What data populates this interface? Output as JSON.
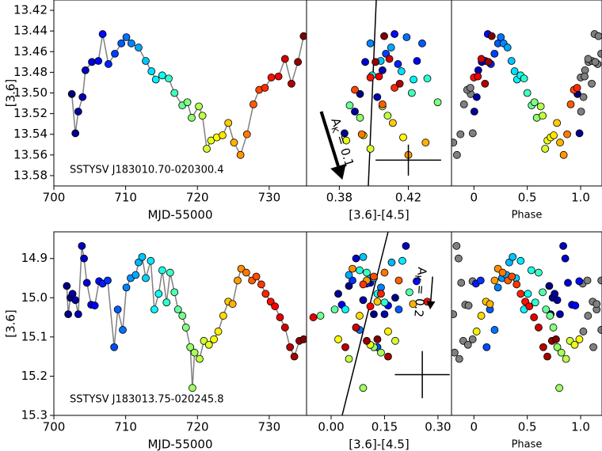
{
  "chart_data": [
    {
      "type": "line",
      "xlabel": "MJD-55000",
      "ylabel": "[3.6]",
      "annotation": "SSTYSV J183010.70-020300.4",
      "line_color": "#808080",
      "colormap": [
        "#00007f",
        "#0000ff",
        "#0080ff",
        "#00ffff",
        "#80ff80",
        "#ffff00",
        "#ff8000",
        "#ff0000",
        "#7f0000"
      ],
      "xlim": [
        700,
        735.2
      ],
      "xticks": [
        700,
        710,
        720,
        730
      ],
      "ylim": [
        13.59,
        13.41
      ],
      "yticks": [
        13.42,
        13.44,
        13.46,
        13.48,
        {
          "value": 13.5,
          "label": "13.50"
        },
        13.52,
        13.54,
        13.56,
        13.58
      ],
      "x": [
        702.5,
        703.0,
        703.4,
        704.0,
        704.4,
        705.3,
        706.2,
        706.8,
        707.6,
        708.5,
        709.4,
        710.1,
        710.8,
        711.8,
        712.8,
        713.6,
        714.2,
        715.1,
        716.0,
        716.8,
        717.9,
        718.6,
        719.2,
        720.2,
        720.7,
        721.3,
        721.9,
        722.7,
        723.5,
        724.3,
        725.1,
        726.0,
        726.9,
        727.8,
        728.6,
        729.4,
        730.3,
        731.3,
        732.2,
        733.1,
        734.0,
        734.8
      ],
      "values": [
        13.501,
        13.539,
        13.518,
        13.504,
        13.478,
        13.47,
        13.469,
        13.443,
        13.472,
        13.462,
        13.452,
        13.446,
        13.452,
        13.456,
        13.469,
        13.479,
        13.487,
        13.483,
        13.486,
        13.5,
        13.512,
        13.509,
        13.524,
        13.513,
        13.522,
        13.554,
        13.546,
        13.543,
        13.541,
        13.529,
        13.548,
        13.56,
        13.54,
        13.511,
        13.497,
        13.495,
        13.485,
        13.484,
        13.467,
        13.491,
        13.47,
        13.445
      ]
    },
    {
      "type": "scatter",
      "xlabel": "[3.6]-[4.5]",
      "xlim": [
        0.361,
        0.445
      ],
      "xticks": [
        0.38,
        0.42
      ],
      "x": [
        0.392,
        0.383,
        0.389,
        0.402,
        0.405,
        0.395,
        0.425,
        0.412,
        0.414,
        0.407,
        0.428,
        0.419,
        0.398,
        0.41,
        0.404,
        0.416,
        0.423,
        0.399,
        0.431,
        0.422,
        0.386,
        0.437,
        0.392,
        0.405,
        0.408,
        0.398,
        0.384,
        0.417,
        0.394,
        0.411,
        0.43,
        0.42,
        0.393,
        0.405,
        0.389,
        0.412,
        0.398,
        0.403,
        0.409,
        0.415,
        0.401,
        0.406
      ],
      "values": [
        13.501,
        13.539,
        13.518,
        13.504,
        13.478,
        13.47,
        13.469,
        13.443,
        13.472,
        13.462,
        13.452,
        13.446,
        13.452,
        13.456,
        13.469,
        13.479,
        13.487,
        13.483,
        13.486,
        13.5,
        13.512,
        13.509,
        13.524,
        13.513,
        13.522,
        13.554,
        13.546,
        13.543,
        13.541,
        13.529,
        13.548,
        13.56,
        13.54,
        13.511,
        13.497,
        13.495,
        13.485,
        13.484,
        13.467,
        13.491,
        13.47,
        13.445
      ],
      "fit_line": {
        "x": [
          0.4014,
          0.3968
        ],
        "y": [
          13.41,
          13.59
        ]
      },
      "arrow": {
        "x": [
          0.3695,
          0.3818
        ],
        "y": [
          13.518,
          13.584
        ],
        "label": "A",
        "label_sub": "K",
        "label_rest": " = 0.1"
      },
      "error_cross": {
        "x": 0.42,
        "y": 13.565,
        "xerr": 0.019,
        "yerr": 0.015
      }
    },
    {
      "type": "scatter",
      "xlabel": "Phase",
      "xlim": [
        -0.21,
        1.2
      ],
      "xticks": [
        0,
        0.5,
        {
          "value": 1,
          "label": "1.0"
        }
      ],
      "x": [
        0.97,
        0.989,
        0.004,
        0.026,
        0.041,
        0.074,
        0.107,
        0.13,
        0.159,
        0.193,
        0.226,
        0.252,
        0.278,
        0.315,
        0.352,
        0.381,
        0.404,
        0.437,
        0.47,
        0.5,
        0.541,
        0.567,
        0.589,
        0.626,
        0.644,
        0.667,
        0.689,
        0.719,
        0.748,
        0.778,
        0.807,
        0.841,
        0.874,
        0.907,
        0.937,
        0.967,
        0.0,
        0.037,
        0.07,
        0.104,
        0.137,
        0.167
      ],
      "values": [
        13.501,
        13.539,
        13.518,
        13.504,
        13.478,
        13.47,
        13.469,
        13.443,
        13.472,
        13.462,
        13.452,
        13.446,
        13.452,
        13.456,
        13.469,
        13.479,
        13.487,
        13.483,
        13.486,
        13.5,
        13.512,
        13.509,
        13.524,
        13.513,
        13.522,
        13.554,
        13.546,
        13.543,
        13.541,
        13.529,
        13.548,
        13.56,
        13.54,
        13.511,
        13.497,
        13.495,
        13.485,
        13.484,
        13.467,
        13.491,
        13.47,
        13.445
      ],
      "wrapped_color": "#808080",
      "wrapped_x": [
        -0.03,
        -0.011,
        -0.159,
        -0.126,
        -0.093,
        -0.063,
        -0.033,
        -0.193,
        1.004,
        1.026,
        1.041,
        1.074,
        1.107,
        1.13,
        1.159,
        1.193,
        1.0,
        1.037,
        1.07,
        1.104,
        1.137,
        1.167
      ],
      "wrapped_values": [
        13.501,
        13.539,
        13.56,
        13.54,
        13.511,
        13.497,
        13.495,
        13.548,
        13.518,
        13.504,
        13.478,
        13.47,
        13.469,
        13.443,
        13.472,
        13.462,
        13.485,
        13.484,
        13.467,
        13.491,
        13.47,
        13.445
      ]
    },
    {
      "type": "line",
      "xlabel": "MJD-55000",
      "ylabel": "[3.6]",
      "annotation": "SSTYSV J183013.75-020245.8",
      "line_color": "#808080",
      "colormap": [
        "#00007f",
        "#0000ff",
        "#0080ff",
        "#00ffff",
        "#80ff80",
        "#ffff00",
        "#ff8000",
        "#ff0000",
        "#7f0000"
      ],
      "xlim": [
        700,
        735.2
      ],
      "xticks": [
        700,
        710,
        720,
        730
      ],
      "ylim": [
        15.3,
        14.832
      ],
      "yticks": [
        14.9,
        {
          "value": 15,
          "label": "15.0"
        },
        15.1,
        15.2,
        15.3
      ],
      "x": [
        701.8,
        702.0,
        702.3,
        702.6,
        703.0,
        703.4,
        703.9,
        704.2,
        704.6,
        705.2,
        705.7,
        706.3,
        706.8,
        707.5,
        708.4,
        708.9,
        709.6,
        710.1,
        710.7,
        711.4,
        711.8,
        712.3,
        712.8,
        713.5,
        714.0,
        714.6,
        715.1,
        715.7,
        716.2,
        716.8,
        717.3,
        717.9,
        718.4,
        719.0,
        719.3,
        719.6,
        720.3,
        720.9,
        721.6,
        722.3,
        722.9,
        723.6,
        724.3,
        724.9,
        725.6,
        726.1,
        726.8,
        727.6,
        728.2,
        728.9,
        729.5,
        730.2,
        730.8,
        731.5,
        732.2,
        732.9,
        733.5,
        734.2,
        734.8
      ],
      "values": [
        14.97,
        15.042,
        15.0,
        14.99,
        15.006,
        15.042,
        14.868,
        14.9,
        14.962,
        15.018,
        15.02,
        14.958,
        14.964,
        14.956,
        15.126,
        15.03,
        15.082,
        14.974,
        14.95,
        14.942,
        14.91,
        14.896,
        14.95,
        14.906,
        15.03,
        14.99,
        14.93,
        15.012,
        14.936,
        14.986,
        15.03,
        15.046,
        15.076,
        15.126,
        15.23,
        15.14,
        15.156,
        15.11,
        15.12,
        15.106,
        15.086,
        15.046,
        15.01,
        15.016,
        14.956,
        14.926,
        14.936,
        14.956,
        14.946,
        14.966,
        14.99,
        15.01,
        15.022,
        15.05,
        15.076,
        15.126,
        15.15,
        15.11,
        15.106
      ]
    },
    {
      "type": "scatter",
      "xlabel": "[3.6]-[4.5]",
      "xlim": [
        -0.069,
        0.338
      ],
      "xticks": [
        {
          "value": 0,
          "label": "0.00"
        },
        0.15,
        {
          "value": 0.3,
          "label": "0.30"
        }
      ],
      "x": [
        0.05,
        0.12,
        0.18,
        0.02,
        0.09,
        0.15,
        0.21,
        0.07,
        0.11,
        0.03,
        0.16,
        0.24,
        0.1,
        0.06,
        0.13,
        0.19,
        0.08,
        0.14,
        0.11,
        0.05,
        0.17,
        0.09,
        0.12,
        0.2,
        0.04,
        0.13,
        0.08,
        0.15,
        0.1,
        0.22,
        0.01,
        -0.03,
        0.07,
        0.12,
        0.09,
        0.14,
        0.05,
        0.18,
        0.11,
        0.02,
        0.16,
        0.08,
        0.13,
        0.23,
        0.1,
        0.06,
        0.15,
        0.19,
        0.12,
        0.09,
        0.14,
        0.27,
        0.11,
        -0.05,
        0.07,
        0.04,
        0.16,
        0.1,
        0.13
      ],
      "values": [
        14.97,
        15.042,
        15.0,
        14.99,
        15.006,
        15.042,
        14.868,
        14.9,
        14.962,
        15.018,
        15.02,
        14.958,
        14.964,
        14.956,
        15.126,
        15.03,
        15.082,
        14.974,
        14.95,
        14.942,
        14.91,
        14.896,
        14.95,
        14.906,
        15.03,
        14.99,
        14.93,
        15.012,
        14.936,
        14.986,
        15.03,
        15.046,
        15.076,
        15.126,
        15.23,
        15.14,
        15.156,
        15.11,
        15.12,
        15.106,
        15.086,
        15.046,
        15.01,
        15.016,
        14.956,
        14.926,
        14.936,
        14.956,
        14.946,
        14.966,
        14.99,
        15.01,
        15.022,
        15.05,
        15.076,
        15.126,
        15.15,
        15.11,
        15.106
      ],
      "fit_line": {
        "x": [
          0.16,
          0.031
        ],
        "y": [
          14.832,
          15.3
        ]
      },
      "arrow": {
        "x": [
          0.285,
          0.278
        ],
        "y": [
          14.946,
          15.03
        ],
        "label": "A",
        "label_sub": "K",
        "label_rest": " = 0.2"
      },
      "error_cross": {
        "x": 0.256,
        "y": 15.196,
        "xerr": 0.077,
        "yerr": 0.06
      }
    },
    {
      "type": "scatter",
      "xlabel": "Phase",
      "xlim": [
        -0.21,
        1.2
      ],
      "xticks": [
        0,
        0.5,
        {
          "value": 1,
          "label": "1.0"
        }
      ],
      "x": [
        0.706,
        0.719,
        0.737,
        0.756,
        0.781,
        0.806,
        0.837,
        0.856,
        0.881,
        0.919,
        0.95,
        0.987,
        0.019,
        0.063,
        0.119,
        0.15,
        0.194,
        0.225,
        0.263,
        0.306,
        0.331,
        0.363,
        0.394,
        0.438,
        0.469,
        0.506,
        0.538,
        0.575,
        0.606,
        0.644,
        0.675,
        0.713,
        0.744,
        0.781,
        0.8,
        0.819,
        0.863,
        0.9,
        0.944,
        0.988,
        0.025,
        0.069,
        0.113,
        0.15,
        0.194,
        0.225,
        0.269,
        0.319,
        0.356,
        0.4,
        0.438,
        0.481,
        0.519,
        0.563,
        0.606,
        0.65,
        0.688,
        0.731,
        0.769
      ],
      "values": [
        14.97,
        15.042,
        15.0,
        14.99,
        15.006,
        15.042,
        14.868,
        14.9,
        14.962,
        15.018,
        15.02,
        14.958,
        14.964,
        14.956,
        15.126,
        15.03,
        15.082,
        14.974,
        14.95,
        14.942,
        14.91,
        14.896,
        14.95,
        14.906,
        15.03,
        14.99,
        14.93,
        15.012,
        14.936,
        14.986,
        15.03,
        15.046,
        15.076,
        15.126,
        15.23,
        15.14,
        15.156,
        15.11,
        15.12,
        15.106,
        15.086,
        15.046,
        15.01,
        15.016,
        14.956,
        14.926,
        14.936,
        14.956,
        14.946,
        14.966,
        14.99,
        15.01,
        15.022,
        15.05,
        15.076,
        15.126,
        15.15,
        15.11,
        15.106
      ],
      "wrapped_color": "#808080",
      "wrapped_x": [
        -0.194,
        -0.163,
        -0.144,
        -0.119,
        -0.081,
        -0.05,
        -0.013,
        -0.181,
        -0.137,
        -0.1,
        -0.056,
        -0.012,
        1.019,
        1.063,
        1.119,
        1.15,
        1.194,
        1.025,
        1.069,
        1.113,
        1.15,
        1.194
      ],
      "wrapped_values": [
        15.042,
        14.868,
        14.9,
        14.962,
        15.018,
        15.02,
        14.958,
        15.14,
        15.156,
        15.11,
        15.12,
        15.106,
        14.964,
        14.956,
        15.126,
        15.03,
        15.082,
        15.086,
        15.046,
        15.01,
        15.016,
        14.956
      ]
    }
  ]
}
